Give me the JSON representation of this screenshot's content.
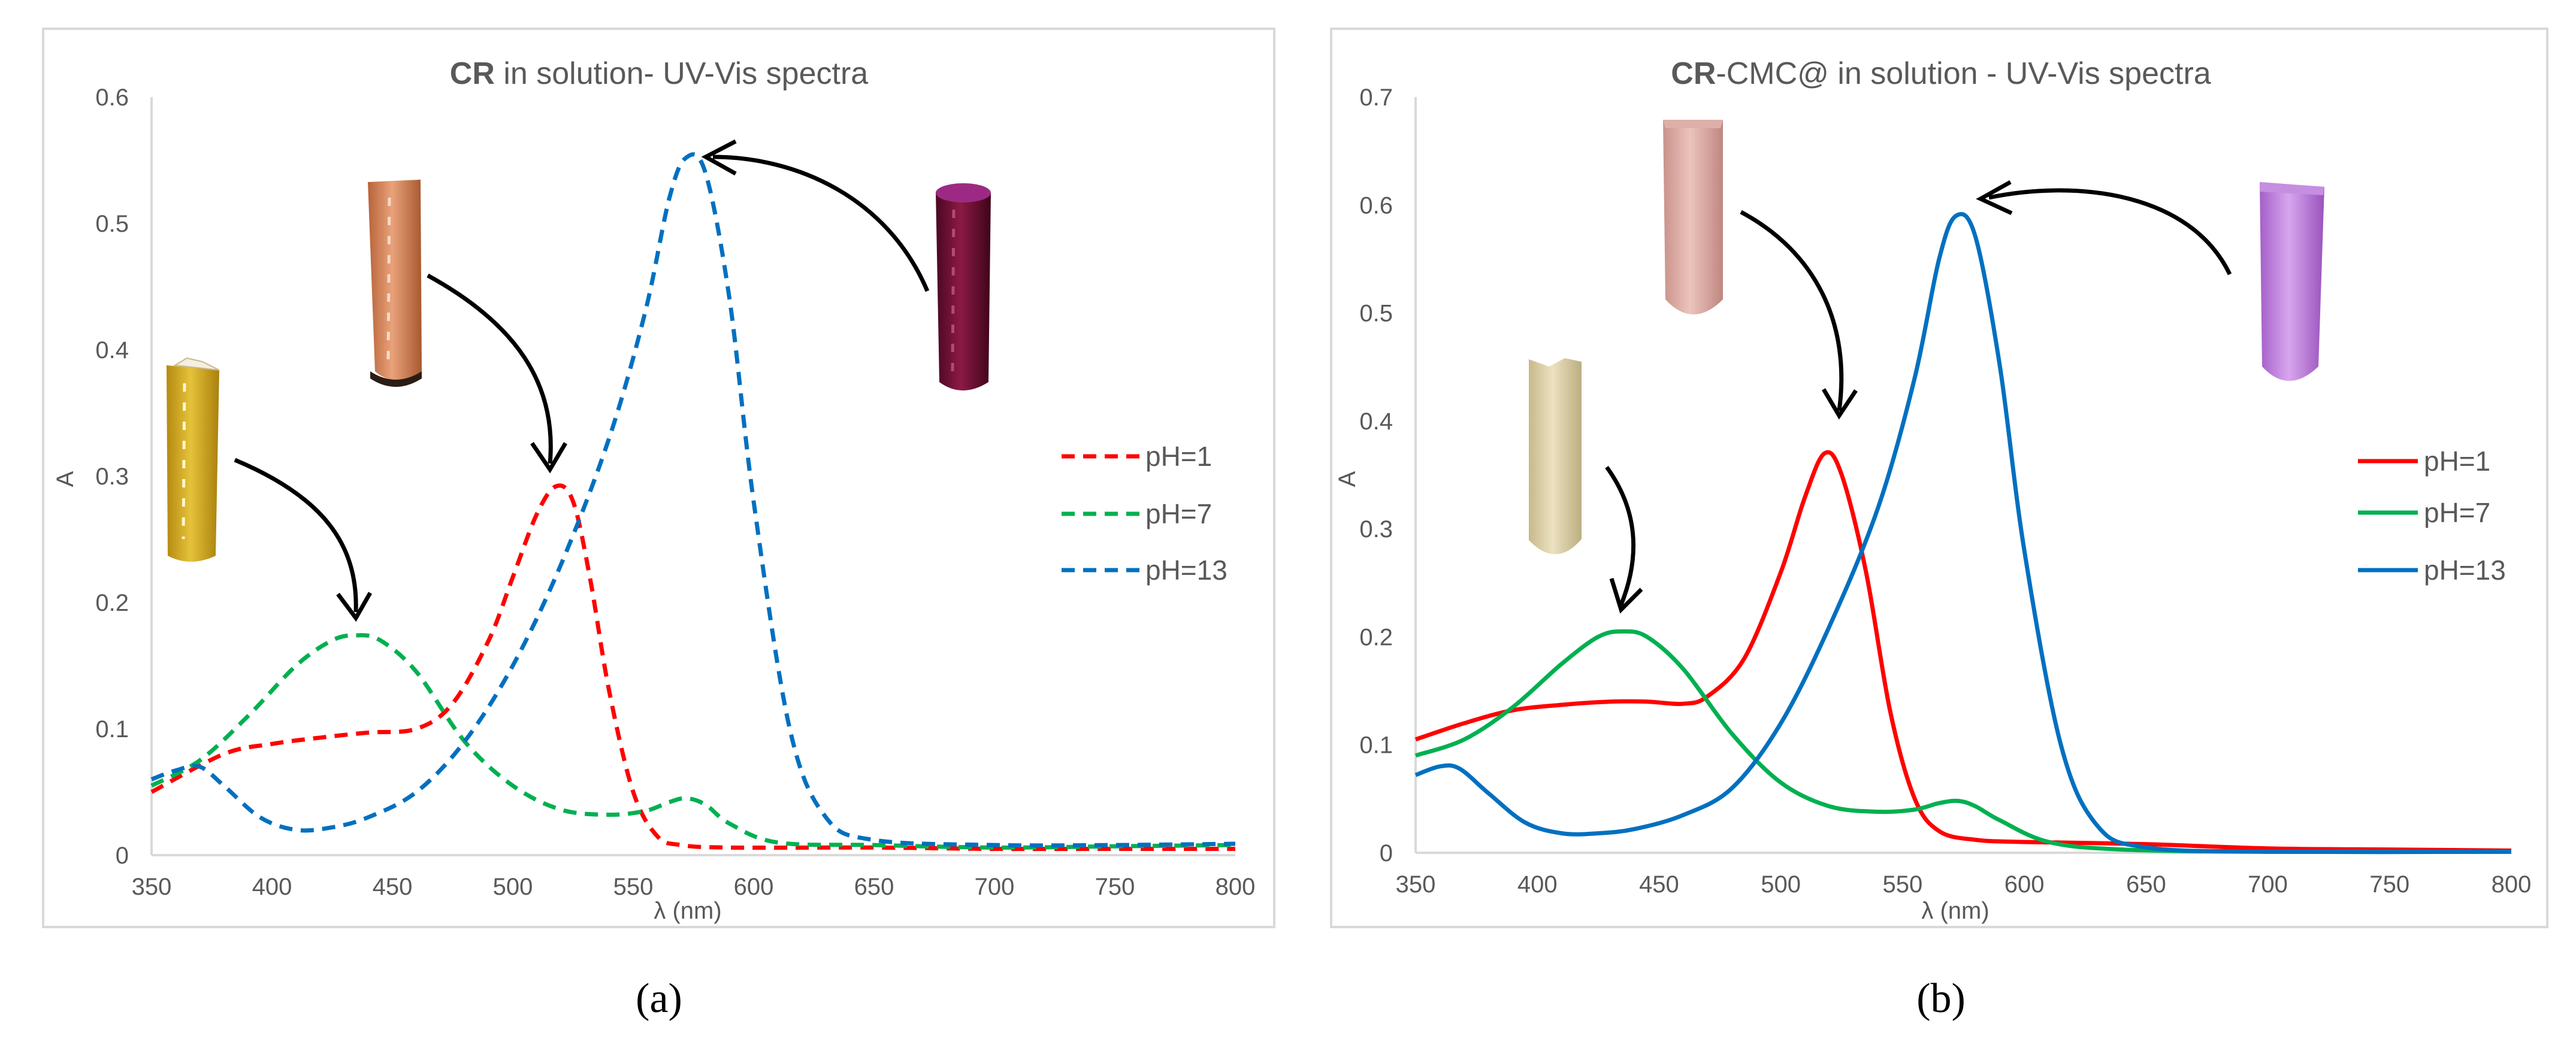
{
  "chart_data": [
    {
      "type": "line",
      "panel_label": "(a)",
      "title": {
        "bold": "CR",
        "rest": " in solution- UV-Vis spectra"
      },
      "xlabel": "λ (nm)",
      "ylabel": "A",
      "xlim": [
        350,
        800
      ],
      "ylim": [
        0,
        0.6
      ],
      "xticks": [
        "350",
        "400",
        "450",
        "500",
        "550",
        "600",
        "650",
        "700",
        "750",
        "800"
      ],
      "yticks": [
        "0",
        "0.1",
        "0.2",
        "0.3",
        "0.4",
        "0.5",
        "0.6"
      ],
      "line_style": "dashed",
      "grid": false,
      "legend_position": "right",
      "series": [
        {
          "name": "pH=1",
          "color": "#ff0000",
          "x": [
            350,
            380,
            400,
            420,
            440,
            460,
            475,
            490,
            500,
            510,
            518,
            525,
            532,
            540,
            550,
            560,
            570,
            590,
            650,
            700,
            750,
            800
          ],
          "y": [
            0.05,
            0.08,
            0.088,
            0.093,
            0.097,
            0.1,
            0.12,
            0.17,
            0.22,
            0.27,
            0.292,
            0.28,
            0.22,
            0.13,
            0.05,
            0.015,
            0.008,
            0.006,
            0.006,
            0.005,
            0.005,
            0.005
          ]
        },
        {
          "name": "pH=7",
          "color": "#00b050",
          "x": [
            350,
            370,
            390,
            410,
            425,
            435,
            445,
            460,
            480,
            500,
            520,
            540,
            555,
            565,
            572,
            580,
            590,
            610,
            650,
            700,
            750,
            800
          ],
          "y": [
            0.055,
            0.075,
            0.11,
            0.15,
            0.17,
            0.174,
            0.17,
            0.145,
            0.09,
            0.055,
            0.036,
            0.032,
            0.035,
            0.042,
            0.045,
            0.04,
            0.025,
            0.01,
            0.008,
            0.006,
            0.007,
            0.008
          ]
        },
        {
          "name": "pH=13",
          "color": "#0070c0",
          "x": [
            350,
            360,
            370,
            380,
            395,
            410,
            425,
            440,
            460,
            480,
            500,
            520,
            540,
            555,
            565,
            572,
            580,
            590,
            600,
            615,
            630,
            650,
            700,
            750,
            800
          ],
          "y": [
            0.06,
            0.067,
            0.07,
            0.055,
            0.03,
            0.02,
            0.022,
            0.03,
            0.05,
            0.09,
            0.15,
            0.23,
            0.33,
            0.43,
            0.52,
            0.552,
            0.54,
            0.44,
            0.28,
            0.1,
            0.03,
            0.012,
            0.008,
            0.008,
            0.009
          ]
        }
      ]
    },
    {
      "type": "line",
      "panel_label": "(b)",
      "title": {
        "bold": "CR",
        "rest": "-CMC@ in solution - UV-Vis spectra"
      },
      "xlabel": "λ (nm)",
      "ylabel": "A",
      "xlim": [
        350,
        800
      ],
      "ylim": [
        0,
        0.7
      ],
      "xticks": [
        "350",
        "400",
        "450",
        "500",
        "550",
        "600",
        "650",
        "700",
        "750",
        "800"
      ],
      "yticks": [
        "0",
        "0.1",
        "0.2",
        "0.3",
        "0.4",
        "0.5",
        "0.6",
        "0.7"
      ],
      "line_style": "solid",
      "grid": false,
      "legend_position": "right",
      "series": [
        {
          "name": "pH=1",
          "color": "#ff0000",
          "x": [
            350,
            370,
            390,
            410,
            430,
            445,
            460,
            470,
            485,
            500,
            510,
            518,
            525,
            535,
            545,
            555,
            565,
            580,
            600,
            650,
            700,
            750,
            800
          ],
          "y": [
            0.105,
            0.12,
            0.132,
            0.137,
            0.14,
            0.14,
            0.138,
            0.145,
            0.18,
            0.26,
            0.33,
            0.37,
            0.35,
            0.26,
            0.13,
            0.05,
            0.02,
            0.012,
            0.01,
            0.008,
            0.004,
            0.003,
            0.002
          ]
        },
        {
          "name": "pH=7",
          "color": "#00b050",
          "x": [
            350,
            370,
            390,
            410,
            425,
            435,
            445,
            460,
            480,
            500,
            520,
            540,
            555,
            565,
            573,
            580,
            590,
            610,
            640,
            700,
            800
          ],
          "y": [
            0.09,
            0.105,
            0.135,
            0.175,
            0.2,
            0.205,
            0.2,
            0.17,
            0.11,
            0.065,
            0.043,
            0.038,
            0.04,
            0.046,
            0.048,
            0.043,
            0.03,
            0.01,
            0.003,
            0.001,
            0.001
          ]
        },
        {
          "name": "pH=13",
          "color": "#0070c0",
          "x": [
            350,
            360,
            368,
            380,
            395,
            410,
            425,
            440,
            460,
            480,
            500,
            520,
            540,
            555,
            565,
            572,
            580,
            590,
            600,
            615,
            630,
            650,
            700,
            800
          ],
          "y": [
            0.072,
            0.08,
            0.078,
            0.055,
            0.028,
            0.018,
            0.018,
            0.022,
            0.035,
            0.06,
            0.12,
            0.21,
            0.32,
            0.44,
            0.55,
            0.59,
            0.57,
            0.45,
            0.28,
            0.1,
            0.025,
            0.005,
            0.001,
            0.001
          ]
        }
      ]
    }
  ]
}
